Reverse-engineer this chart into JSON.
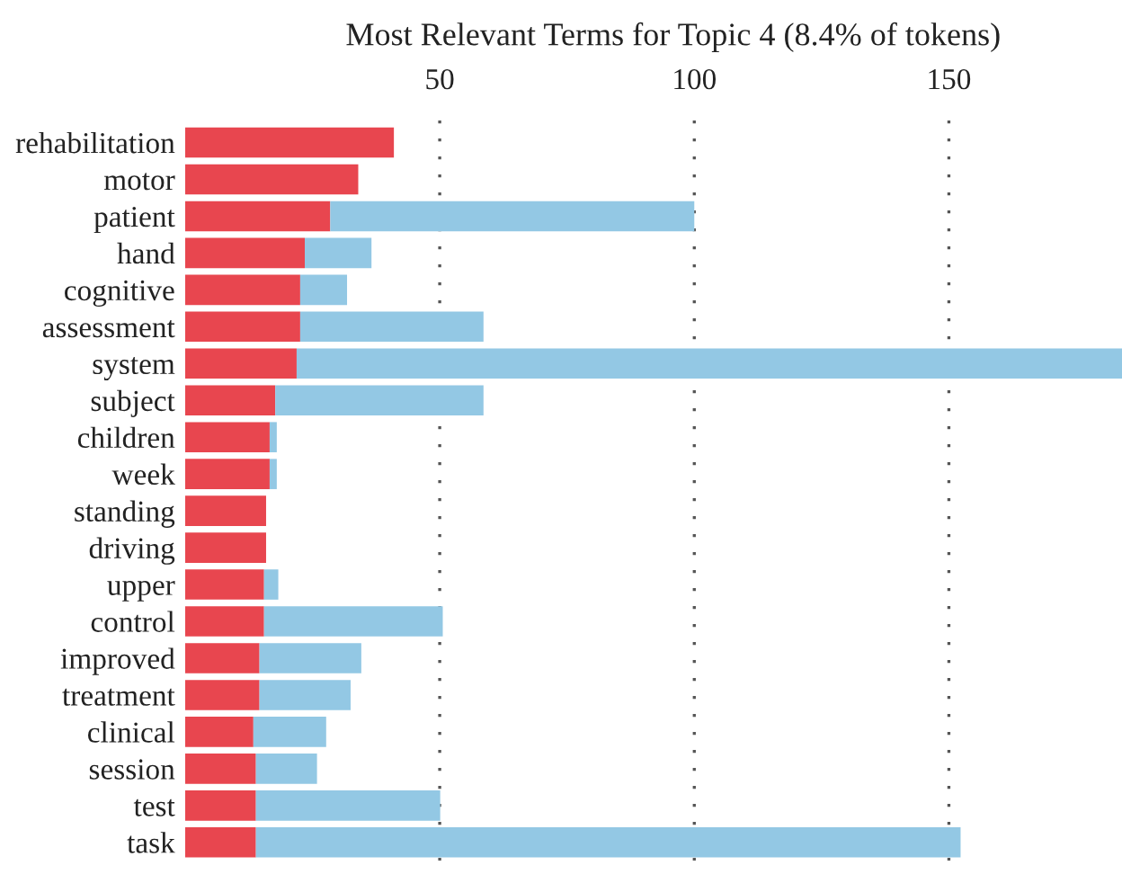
{
  "chart_data": {
    "type": "bar",
    "orientation": "horizontal",
    "stacked": true,
    "title": "Most Relevant Terms for Topic 4 (8.4% of tokens)",
    "categories": [
      "rehabilitation",
      "motor",
      "patient",
      "hand",
      "cognitive",
      "assessment",
      "system",
      "subject",
      "children",
      "week",
      "standing",
      "driving",
      "upper",
      "control",
      "improved",
      "treatment",
      "clinical",
      "session",
      "test",
      "task"
    ],
    "series": [
      {
        "color": "#e8464f",
        "values": [
          41,
          34,
          28.5,
          23.5,
          22.6,
          22.6,
          21.9,
          17.7,
          16.6,
          16.6,
          15.9,
          15.9,
          15.5,
          15.5,
          14.6,
          14.6,
          13.4,
          13.9,
          13.9,
          13.9
        ]
      },
      {
        "color": "#93c8e4",
        "values": [
          null,
          null,
          71.5,
          13.1,
          9.2,
          36,
          162.1,
          40.9,
          1.4,
          1.4,
          null,
          null,
          2.8,
          35.1,
          20,
          17.9,
          14.3,
          12,
          36.2,
          138.4
        ]
      }
    ],
    "xlim": [
      0,
      184
    ],
    "xticks": [
      50,
      100,
      150
    ],
    "grid": "x"
  }
}
